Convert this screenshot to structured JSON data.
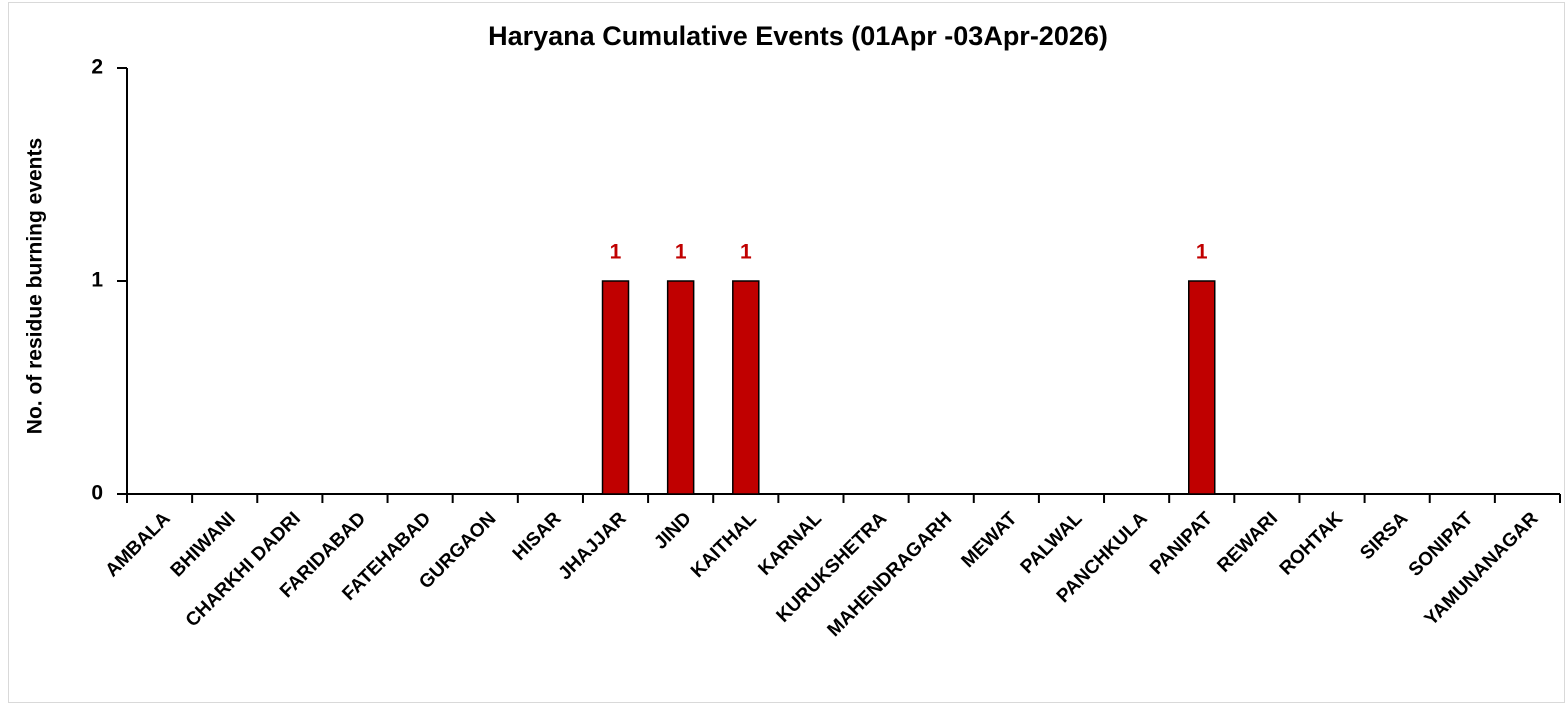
{
  "chart_data": {
    "type": "bar",
    "title": "Haryana Cumulative Events (01Apr -03Apr-2026)",
    "y_label": "No. of residue burning events",
    "categories": [
      "AMBALA",
      "BHIWANI",
      "CHARKHI DADRI",
      "FARIDABAD",
      "FATEHABAD",
      "GURGAON",
      "HISAR",
      "JHAJJAR",
      "JIND",
      "KAITHAL",
      "KARNAL",
      "KURUKSHETRA",
      "MAHENDRAGARH",
      "MEWAT",
      "PALWAL",
      "PANCHKULA",
      "PANIPAT",
      "REWARI",
      "ROHTAK",
      "SIRSA",
      "SONIPAT",
      "YAMUNANAGAR"
    ],
    "values": [
      0,
      0,
      0,
      0,
      0,
      0,
      0,
      1,
      1,
      1,
      0,
      0,
      0,
      0,
      0,
      0,
      1,
      0,
      0,
      0,
      0,
      0
    ],
    "value_labels": [
      null,
      null,
      null,
      null,
      null,
      null,
      null,
      "1",
      "1",
      "1",
      null,
      null,
      null,
      null,
      null,
      null,
      "1",
      null,
      null,
      null,
      null,
      null
    ],
    "color": "#c00000",
    "label_color": "#c00000",
    "ylim": [
      0,
      2
    ],
    "yticks": [
      0,
      1,
      2
    ],
    "grid": false
  }
}
